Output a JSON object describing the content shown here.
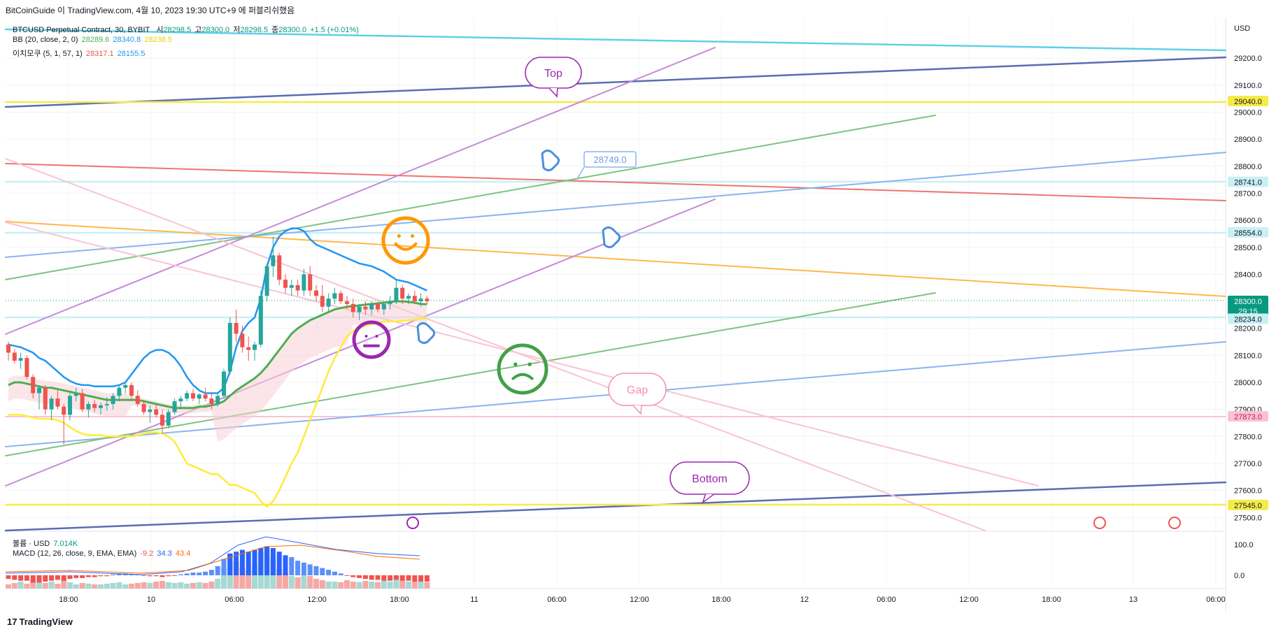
{
  "header": {
    "title": "BitCoinGuide 이 TradingView.com, 4월 10, 2023 19:30 UTC+9 에 퍼블리쉬했음"
  },
  "legend": {
    "symbol": "BTCUSD Perpetual Contract, 30, BYBIT",
    "open_label": "시",
    "open": "28298.5",
    "high_label": "고",
    "high": "28300.0",
    "low_label": "저",
    "low": "28298.5",
    "close_label": "종",
    "close": "28300.0",
    "change": "+1.5 (+0.01%)",
    "bb_name": "BB (20, close, 2, 0)",
    "bb_basis": "28289.6",
    "bb_upper": "28340.8",
    "bb_lower": "28238.5",
    "ichimoku_name": "이치모쿠 (5, 1, 57, 1)",
    "ichimoku_a": "28317.1",
    "ichimoku_b": "28155.5",
    "volume_name": "볼륨 · USD",
    "volume_value": "7.014K",
    "macd_name": "MACD (12, 26, close, 9, EMA, EMA)",
    "macd_hist": "-9.2",
    "macd_line": "34.3",
    "macd_signal": "43.4"
  },
  "footer": {
    "brand": "TradingView"
  },
  "colors": {
    "up": "#26a69a",
    "down": "#ef5350",
    "bb_upper": "#2196f3",
    "bb_basis": "#4caf50",
    "bb_lower": "#ffeb3b",
    "cyan": "#5ed1e6",
    "navy": "#5b6cb5",
    "yellow": "#f5ec4a",
    "purple": "#c58ad6",
    "green_line": "#7cc47e",
    "blue_line": "#8ab4f0",
    "red_line": "#ef7474",
    "orange_line": "#ffb74d",
    "pink_line": "#f8c4d2",
    "price_tag": "#089981"
  },
  "chart_data": {
    "type": "candlestick",
    "currency": "USD",
    "y_ticks": [
      "29200.0",
      "29100.0",
      "29000.0",
      "28900.0",
      "28800.0",
      "28700.0",
      "28600.0",
      "28500.0",
      "28400.0",
      "28200.0",
      "28100.0",
      "28000.0",
      "27900.0",
      "27800.0",
      "27700.0",
      "27600.0",
      "27500.0"
    ],
    "x_ticks": [
      "18:00",
      "10",
      "06:00",
      "12:00",
      "18:00",
      "11",
      "06:00",
      "12:00",
      "18:00",
      "12",
      "06:00",
      "12:00",
      "18:00",
      "13",
      "06:00"
    ],
    "price_labels": [
      {
        "value": "29040.0",
        "y": 29040,
        "bg": "#f5ec4a",
        "fg": "#131722"
      },
      {
        "value": "28741.0",
        "y": 28741,
        "bg": "#c9f0f5",
        "fg": "#131722"
      },
      {
        "value": "28554.0",
        "y": 28554,
        "bg": "#c9f0f5",
        "fg": "#131722"
      },
      {
        "value": "28300.0",
        "y": 28300,
        "bg": "#089981",
        "fg": "#ffffff",
        "sub": "29:15"
      },
      {
        "value": "28234.0",
        "y": 28234,
        "bg": "#c9f0f5",
        "fg": "#131722"
      },
      {
        "value": "27873.0",
        "y": 27873,
        "bg": "#f8c4d2",
        "fg": "#c2185b"
      },
      {
        "value": "27545.0",
        "y": 27545,
        "bg": "#f5ec4a",
        "fg": "#131722"
      }
    ],
    "candles": [
      [
        28140,
        28150,
        28080,
        28110
      ],
      [
        28110,
        28125,
        28070,
        28080
      ],
      [
        28080,
        28110,
        28050,
        28090
      ],
      [
        28090,
        28100,
        28010,
        28020
      ],
      [
        28020,
        28030,
        27940,
        27960
      ],
      [
        27960,
        27990,
        27900,
        27980
      ],
      [
        27980,
        27990,
        27880,
        27900
      ],
      [
        27900,
        27950,
        27860,
        27940
      ],
      [
        27940,
        27970,
        27900,
        27910
      ],
      [
        27910,
        27920,
        27770,
        27880
      ],
      [
        27880,
        27960,
        27860,
        27950
      ],
      [
        27950,
        27980,
        27930,
        27960
      ],
      [
        27960,
        27975,
        27890,
        27900
      ],
      [
        27900,
        27930,
        27870,
        27920
      ],
      [
        27920,
        27935,
        27890,
        27905
      ],
      [
        27905,
        27925,
        27880,
        27915
      ],
      [
        27915,
        27945,
        27895,
        27920
      ],
      [
        27920,
        27960,
        27900,
        27950
      ],
      [
        27950,
        27990,
        27930,
        27980
      ],
      [
        27980,
        28000,
        27960,
        27990
      ],
      [
        27990,
        28000,
        27940,
        27950
      ],
      [
        27950,
        27970,
        27910,
        27920
      ],
      [
        27920,
        27935,
        27880,
        27890
      ],
      [
        27890,
        27915,
        27850,
        27900
      ],
      [
        27900,
        27920,
        27870,
        27880
      ],
      [
        27880,
        27900,
        27810,
        27840
      ],
      [
        27840,
        27900,
        27830,
        27890
      ],
      [
        27890,
        27940,
        27880,
        27930
      ],
      [
        27930,
        27950,
        27900,
        27940
      ],
      [
        27940,
        27970,
        27930,
        27960
      ],
      [
        27960,
        27975,
        27930,
        27940
      ],
      [
        27940,
        27960,
        27920,
        27955
      ],
      [
        27955,
        27980,
        27930,
        27940
      ],
      [
        27940,
        27960,
        27900,
        27920
      ],
      [
        27920,
        27960,
        27910,
        27950
      ],
      [
        27950,
        28050,
        27940,
        28040
      ],
      [
        28040,
        28240,
        28030,
        28220
      ],
      [
        28220,
        28270,
        28150,
        28180
      ],
      [
        28180,
        28210,
        28110,
        28130
      ],
      [
        28130,
        28170,
        28080,
        28120
      ],
      [
        28120,
        28150,
        28080,
        28140
      ],
      [
        28140,
        28340,
        28130,
        28320
      ],
      [
        28320,
        28440,
        28300,
        28430
      ],
      [
        28430,
        28540,
        28390,
        28470
      ],
      [
        28470,
        28480,
        28360,
        28380
      ],
      [
        28380,
        28400,
        28330,
        28350
      ],
      [
        28350,
        28380,
        28320,
        28360
      ],
      [
        28360,
        28380,
        28320,
        28340
      ],
      [
        28340,
        28420,
        28320,
        28400
      ],
      [
        28400,
        28430,
        28320,
        28340
      ],
      [
        28340,
        28360,
        28300,
        28320
      ],
      [
        28320,
        28360,
        28260,
        28280
      ],
      [
        28280,
        28330,
        28260,
        28310
      ],
      [
        28310,
        28350,
        28290,
        28330
      ],
      [
        28330,
        28340,
        28290,
        28300
      ],
      [
        28300,
        28320,
        28270,
        28290
      ],
      [
        28290,
        28310,
        28240,
        28260
      ],
      [
        28260,
        28290,
        28230,
        28280
      ],
      [
        28280,
        28300,
        28250,
        28270
      ],
      [
        28270,
        28300,
        28250,
        28290
      ],
      [
        28290,
        28300,
        28260,
        28270
      ],
      [
        28270,
        28300,
        28250,
        28290
      ],
      [
        28290,
        28320,
        28270,
        28300
      ],
      [
        28300,
        28380,
        28290,
        28350
      ],
      [
        28350,
        28360,
        28290,
        28310
      ],
      [
        28310,
        28330,
        28290,
        28320
      ],
      [
        28320,
        28340,
        28290,
        28300
      ],
      [
        28300,
        28330,
        28280,
        28310
      ],
      [
        28310,
        28320,
        28290,
        28300
      ]
    ],
    "bb_upper": [
      28140,
      28135,
      28130,
      28120,
      28110,
      28090,
      28080,
      28060,
      28040,
      28020,
      28005,
      27995,
      27990,
      27990,
      27985,
      27985,
      27985,
      27985,
      27990,
      28000,
      28030,
      28060,
      28090,
      28110,
      28120,
      28120,
      28110,
      28090,
      28060,
      28020,
      27990,
      27970,
      27960,
      27960,
      27960,
      27980,
      28040,
      28130,
      28190,
      28220,
      28240,
      28310,
      28430,
      28500,
      28540,
      28560,
      28570,
      28570,
      28560,
      28530,
      28510,
      28500,
      28490,
      28480,
      28470,
      28460,
      28450,
      28440,
      28435,
      28430,
      28420,
      28410,
      28395,
      28380,
      28375,
      28370,
      28360,
      28350,
      28340
    ],
    "bb_basis": [
      27990,
      28000,
      28000,
      27995,
      27990,
      27985,
      27980,
      27980,
      27975,
      27970,
      27965,
      27960,
      27955,
      27950,
      27945,
      27940,
      27935,
      27935,
      27935,
      27935,
      27935,
      27935,
      27930,
      27925,
      27920,
      27915,
      27910,
      27905,
      27905,
      27905,
      27905,
      27910,
      27910,
      27915,
      27920,
      27930,
      27950,
      27970,
      27985,
      28000,
      28015,
      28035,
      28060,
      28090,
      28120,
      28150,
      28180,
      28200,
      28215,
      28230,
      28240,
      28250,
      28260,
      28270,
      28275,
      28280,
      28282,
      28285,
      28288,
      28290,
      28292,
      28295,
      28298,
      28300,
      28300,
      28298,
      28295,
      28290,
      28289
    ],
    "bb_lower": [
      27880,
      27880,
      27880,
      27875,
      27870,
      27865,
      27865,
      27865,
      27860,
      27850,
      27835,
      27820,
      27810,
      27805,
      27805,
      27805,
      27800,
      27800,
      27800,
      27800,
      27800,
      27805,
      27810,
      27815,
      27815,
      27810,
      27800,
      27780,
      27740,
      27700,
      27690,
      27680,
      27670,
      27660,
      27660,
      27640,
      27620,
      27620,
      27610,
      27600,
      27590,
      27560,
      27540,
      27560,
      27600,
      27650,
      27700,
      27740,
      27800,
      27860,
      27920,
      27980,
      28040,
      28090,
      28130,
      28170,
      28190,
      28200,
      28210,
      28215,
      28220,
      28225,
      28225,
      28226,
      28228,
      28230,
      28232,
      28236,
      28238
    ]
  }
}
